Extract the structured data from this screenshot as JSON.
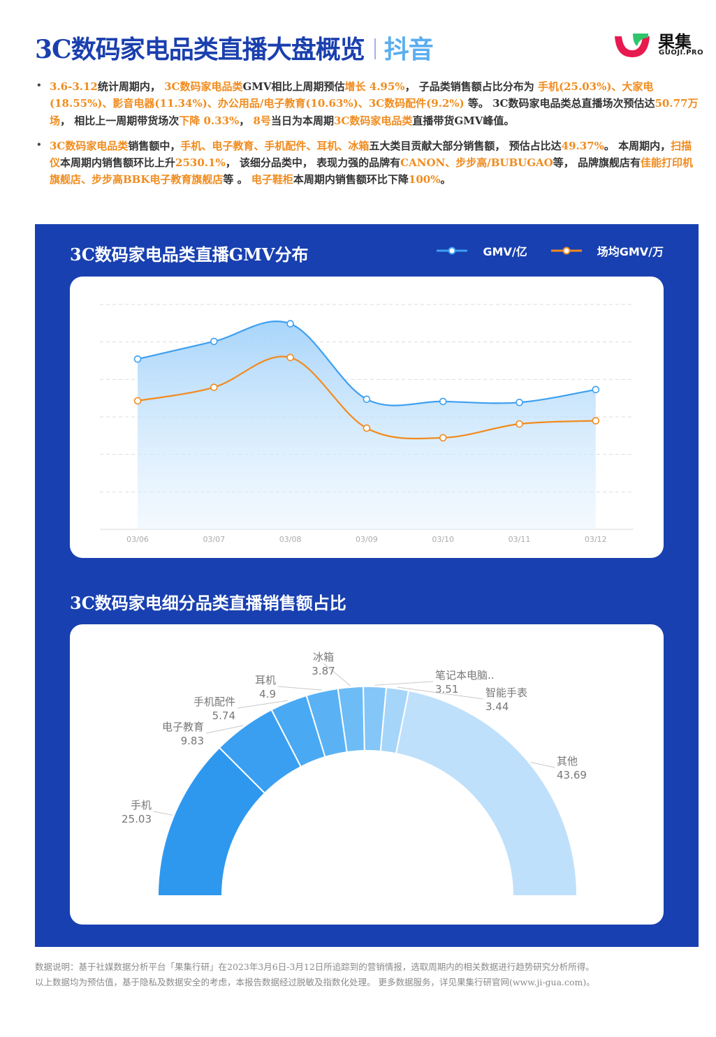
{
  "header": {
    "title": "3C数码家电品类直播大盘概览",
    "platform": "抖音",
    "logo_name": "果集",
    "logo_sub": "GUOJI.PRO",
    "logo_icon": "guoji-logo-icon",
    "colors": {
      "title": "#1a3fae",
      "platform": "#5aaef0",
      "highlight": "#f08c1e",
      "panel": "#1840b0"
    }
  },
  "bullets": [
    [
      {
        "t": "3.6-3.12",
        "h": true
      },
      {
        "t": "统计周期内， "
      },
      {
        "t": "3C数码家电品类",
        "h": true
      },
      {
        "t": "GMV相比上周期预估"
      },
      {
        "t": "增长 4.95%",
        "h": true
      },
      {
        "t": "， 子品类销售额占比分布为 "
      },
      {
        "t": "手机(25.03%)、大家电(18.55%)、影音电器(11.34%)、办公用品/电子教育(10.63%)、3C数码配件(9.2%)",
        "h": true
      },
      {
        "t": " 等。 3C数码家电品类总直播场次预估达"
      },
      {
        "t": "50.77万场",
        "h": true
      },
      {
        "t": "， 相比上一周期带货场次"
      },
      {
        "t": "下降 0.33%",
        "h": true
      },
      {
        "t": "， "
      },
      {
        "t": "8号",
        "h": true
      },
      {
        "t": "当日为本周期"
      },
      {
        "t": "3C数码家电品类",
        "h": true
      },
      {
        "t": "直播带货GMV峰值。"
      }
    ],
    [
      {
        "t": "3C数码家电品类",
        "h": true
      },
      {
        "t": "销售额中，"
      },
      {
        "t": "手机、电子教育、手机配件、耳机、冰箱",
        "h": true
      },
      {
        "t": "五大类目贡献大部分销售额， 预估占比达"
      },
      {
        "t": "49.37%",
        "h": true
      },
      {
        "t": "。 本周期内，"
      },
      {
        "t": "扫描仪",
        "h": true
      },
      {
        "t": "本周期内销售额环比上升"
      },
      {
        "t": "2530.1%",
        "h": true
      },
      {
        "t": "， 该细分品类中， 表现力强的品牌有"
      },
      {
        "t": "CANON、步步高/BUBUGAO",
        "h": true
      },
      {
        "t": "等， 品牌旗舰店有"
      },
      {
        "t": "佳能打印机旗舰店、步步高BBK电子教育旗舰店",
        "h": true
      },
      {
        "t": "等 。 "
      },
      {
        "t": "电子鞋柜",
        "h": true
      },
      {
        "t": "本周期内销售额环比下降"
      },
      {
        "t": "100%",
        "h": true
      },
      {
        "t": "。"
      }
    ]
  ],
  "chart_data": [
    {
      "type": "line",
      "title": "3C数码家电品类直播GMV分布",
      "categories": [
        "03/06",
        "03/07",
        "03/08",
        "03/09",
        "03/10",
        "03/11",
        "03/12"
      ],
      "series": [
        {
          "name": "GMV/亿",
          "color": "#3d9ff0",
          "values": [
            5.3,
            5.85,
            6.4,
            4.05,
            3.98,
            3.95,
            4.35
          ],
          "area": true
        },
        {
          "name": "场均GMV/万",
          "color": "#f28a1c",
          "values": [
            4.0,
            4.42,
            5.35,
            3.15,
            2.85,
            3.28,
            3.38
          ]
        }
      ],
      "ylim": [
        0,
        7
      ],
      "grid": true,
      "yaxis_labels_visible": false,
      "legend": "top-right"
    },
    {
      "type": "pie",
      "subtype": "half-donut",
      "title": "3C数码家电细分品类直播销售额占比",
      "slices": [
        {
          "label": "手机",
          "value": 25.03,
          "color": "#2e98ef"
        },
        {
          "label": "电子教育",
          "value": 9.83,
          "color": "#3a9ff1"
        },
        {
          "label": "手机配件",
          "value": 5.74,
          "color": "#4aa9f3"
        },
        {
          "label": "耳机",
          "value": 4.9,
          "color": "#5ab2f5"
        },
        {
          "label": "冰箱",
          "value": 3.87,
          "color": "#6dbcf6"
        },
        {
          "label": "笔记本电脑..",
          "value": 3.51,
          "color": "#84c6f8"
        },
        {
          "label": "智能手表",
          "value": 3.44,
          "color": "#a6d5fa"
        },
        {
          "label": "其他",
          "value": 43.69,
          "color": "#bfe0fb"
        }
      ],
      "legend": "none"
    }
  ],
  "footer": {
    "line1": "数据说明：基于社媒数据分析平台「果集行研」在2023年3月6日-3月12日所追踪到的营销情报，选取周期内的相关数据进行趋势研究分析所得。",
    "line2": "以上数据均为预估值，基于隐私及数据安全的考虑，本报告数据经过脱敏及指数化处理。 更多数据服务，详见果集行研官网(www.ji-gua.com)。"
  }
}
